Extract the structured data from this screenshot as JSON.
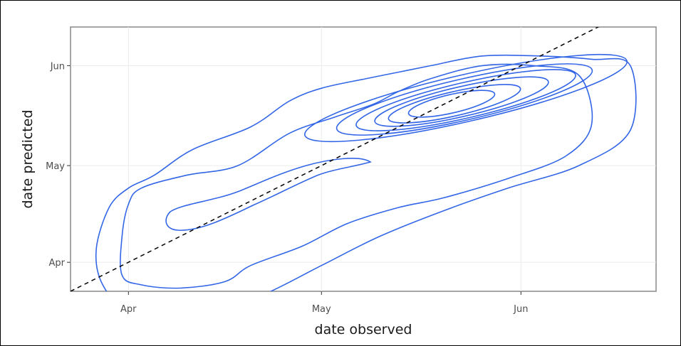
{
  "chart_data": {
    "type": "contour",
    "title": "",
    "xlabel": "date observed",
    "ylabel": "date predicted",
    "x_ticks": [
      {
        "date": "2021-04-01",
        "label": "Apr"
      },
      {
        "date": "2021-05-01",
        "label": "May"
      },
      {
        "date": "2021-06-01",
        "label": "Jun"
      }
    ],
    "y_ticks": [
      {
        "date": "2021-04-01",
        "label": "Apr"
      },
      {
        "date": "2021-05-01",
        "label": "May"
      },
      {
        "date": "2021-06-01",
        "label": "Jun"
      }
    ],
    "xlim": [
      "2021-03-23",
      "2021-06-22"
    ],
    "ylim": [
      "2021-03-23",
      "2021-06-13"
    ],
    "grid": true,
    "reference_line": {
      "style": "dashed",
      "color": "#000000",
      "slope": 1,
      "intercept": 0
    },
    "contour_color": "#3366e6",
    "contours": [
      [
        [
          "2021-04-01",
          "2021-03-17"
        ],
        [
          "2021-04-08",
          "2021-03-17"
        ],
        [
          "2021-04-16",
          "2021-03-19"
        ],
        [
          "2021-04-22",
          "2021-03-22"
        ],
        [
          "2021-05-01",
          "2021-03-31"
        ],
        [
          "2021-05-10",
          "2021-04-09"
        ],
        [
          "2021-05-20",
          "2021-04-17"
        ],
        [
          "2021-05-30",
          "2021-04-24"
        ],
        [
          "2021-06-10",
          "2021-05-01"
        ],
        [
          "2021-06-18",
          "2021-05-12"
        ],
        [
          "2021-06-18",
          "2021-06-01"
        ],
        [
          "2021-06-12",
          "2021-06-03"
        ],
        [
          "2021-06-04",
          "2021-06-04"
        ],
        [
          "2021-05-26",
          "2021-06-04"
        ],
        [
          "2021-05-18",
          "2021-06-01"
        ],
        [
          "2021-05-13",
          "2021-05-30"
        ],
        [
          "2021-05-08",
          "2021-05-28"
        ],
        [
          "2021-05-01",
          "2021-05-25"
        ],
        [
          "2021-04-26",
          "2021-05-21"
        ],
        [
          "2021-04-20",
          "2021-05-13"
        ],
        [
          "2021-04-11",
          "2021-05-06"
        ],
        [
          "2021-04-05",
          "2021-04-28"
        ],
        [
          "2021-04-01",
          "2021-04-24"
        ],
        [
          "2021-03-29",
          "2021-04-18"
        ],
        [
          "2021-03-27",
          "2021-04-05"
        ],
        [
          "2021-03-28",
          "2021-03-25"
        ],
        [
          "2021-04-01",
          "2021-03-17"
        ]
      ],
      [
        [
          "2021-03-31",
          "2021-03-28"
        ],
        [
          "2021-04-03",
          "2021-03-25"
        ],
        [
          "2021-04-09",
          "2021-03-24"
        ],
        [
          "2021-04-16",
          "2021-03-26"
        ],
        [
          "2021-04-20",
          "2021-03-31"
        ],
        [
          "2021-04-28",
          "2021-04-06"
        ],
        [
          "2021-05-05",
          "2021-04-13"
        ],
        [
          "2021-05-13",
          "2021-04-18"
        ],
        [
          "2021-05-20",
          "2021-04-21"
        ],
        [
          "2021-05-30",
          "2021-04-27"
        ],
        [
          "2021-06-08",
          "2021-05-04"
        ],
        [
          "2021-06-12",
          "2021-05-14"
        ],
        [
          "2021-06-10",
          "2021-05-29"
        ],
        [
          "2021-06-03",
          "2021-06-01"
        ],
        [
          "2021-05-26",
          "2021-06-01"
        ],
        [
          "2021-05-18",
          "2021-05-28"
        ],
        [
          "2021-05-13",
          "2021-05-24"
        ],
        [
          "2021-05-09",
          "2021-05-20"
        ],
        [
          "2021-05-03",
          "2021-05-16"
        ],
        [
          "2021-04-26",
          "2021-05-11"
        ],
        [
          "2021-04-18",
          "2021-05-01"
        ],
        [
          "2021-04-10",
          "2021-04-28"
        ],
        [
          "2021-04-03",
          "2021-04-24"
        ],
        [
          "2021-04-01",
          "2021-04-19"
        ],
        [
          "2021-03-31",
          "2021-04-09"
        ],
        [
          "2021-03-31",
          "2021-03-28"
        ]
      ]
    ]
  }
}
